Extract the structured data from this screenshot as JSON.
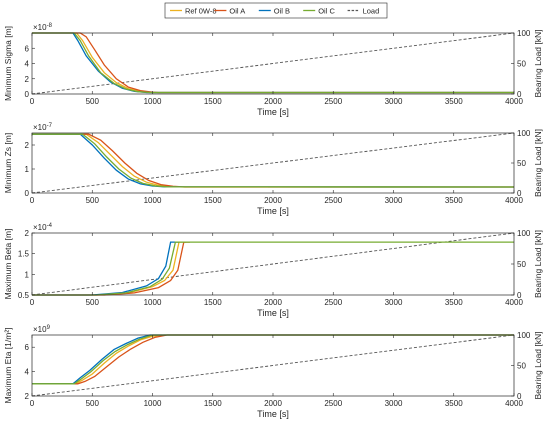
{
  "legend": {
    "placement": "top-center",
    "entries": [
      {
        "label": "Ref 0W-8",
        "color": "#EDB120",
        "dash": false
      },
      {
        "label": "Oil A",
        "color": "#D95319",
        "dash": false
      },
      {
        "label": "Oil B",
        "color": "#0072BD",
        "dash": false
      },
      {
        "label": "Oil C",
        "color": "#77AC30",
        "dash": false
      },
      {
        "label": "Load",
        "color": "#555555",
        "dash": true
      }
    ]
  },
  "chart_data": [
    {
      "type": "line",
      "ylabel": "Minimum Sigma [m]",
      "y2label": "Bearing Load [kN]",
      "xlabel": "Time [s]",
      "exponent": "×10",
      "exponent_power": "-8",
      "xlim": [
        0,
        4000
      ],
      "ylim": [
        0,
        8
      ],
      "y2lim": [
        0,
        100
      ],
      "xticks": [
        "0",
        "500",
        "1000",
        "1500",
        "2000",
        "2500",
        "3000",
        "3500",
        "4000"
      ],
      "yticks": [
        {
          "v": 0,
          "t": "0"
        },
        {
          "v": 2,
          "t": "2"
        },
        {
          "v": 4,
          "t": "4"
        },
        {
          "v": 6,
          "t": "6"
        }
      ],
      "y2ticks": [
        {
          "v": 0,
          "t": "0"
        },
        {
          "v": 50,
          "t": "50"
        },
        {
          "v": 100,
          "t": "100"
        }
      ],
      "series": [
        {
          "name": "Ref 0W-8",
          "color": "#EDB120",
          "points": [
            [
              0,
              8
            ],
            [
              370,
              8
            ],
            [
              420,
              7
            ],
            [
              500,
              4.8
            ],
            [
              600,
              2.8
            ],
            [
              700,
              1.5
            ],
            [
              800,
              0.7
            ],
            [
              900,
              0.35
            ],
            [
              1000,
              0.2
            ],
            [
              4000,
              0.2
            ]
          ]
        },
        {
          "name": "Oil A",
          "color": "#D95319",
          "points": [
            [
              0,
              8
            ],
            [
              400,
              8
            ],
            [
              450,
              7.5
            ],
            [
              520,
              5.8
            ],
            [
              600,
              3.8
            ],
            [
              700,
              2
            ],
            [
              800,
              0.9
            ],
            [
              900,
              0.45
            ],
            [
              1000,
              0.25
            ],
            [
              1050,
              0.2
            ],
            [
              4000,
              0.2
            ]
          ]
        },
        {
          "name": "Oil B",
          "color": "#0072BD",
          "points": [
            [
              0,
              8
            ],
            [
              340,
              8
            ],
            [
              380,
              7
            ],
            [
              450,
              5
            ],
            [
              550,
              3
            ],
            [
              650,
              1.6
            ],
            [
              750,
              0.75
            ],
            [
              850,
              0.35
            ],
            [
              950,
              0.2
            ],
            [
              4000,
              0.2
            ]
          ]
        },
        {
          "name": "Oil C",
          "color": "#77AC30",
          "points": [
            [
              0,
              8
            ],
            [
              350,
              8
            ],
            [
              400,
              7
            ],
            [
              470,
              5
            ],
            [
              570,
              2.8
            ],
            [
              680,
              1.4
            ],
            [
              780,
              0.65
            ],
            [
              880,
              0.3
            ],
            [
              980,
              0.2
            ],
            [
              4000,
              0.2
            ]
          ]
        }
      ],
      "load": [
        [
          0,
          0
        ],
        [
          4000,
          100
        ]
      ]
    },
    {
      "type": "line",
      "ylabel": "Minimum Zs [m]",
      "y2label": "Bearing Load [kN]",
      "xlabel": "Time [s]",
      "exponent": "×10",
      "exponent_power": "-7",
      "xlim": [
        0,
        4000
      ],
      "ylim": [
        0,
        2.5
      ],
      "y2lim": [
        0,
        100
      ],
      "xticks": [
        "0",
        "500",
        "1000",
        "1500",
        "2000",
        "2500",
        "3000",
        "3500",
        "4000"
      ],
      "yticks": [
        {
          "v": 0,
          "t": "0"
        },
        {
          "v": 1,
          "t": "1"
        },
        {
          "v": 2,
          "t": "2"
        }
      ],
      "y2ticks": [
        {
          "v": 0,
          "t": "0"
        },
        {
          "v": 50,
          "t": "50"
        },
        {
          "v": 100,
          "t": "100"
        }
      ],
      "series": [
        {
          "name": "Ref 0W-8",
          "color": "#EDB120",
          "points": [
            [
              0,
              2.45
            ],
            [
              450,
              2.45
            ],
            [
              550,
              2.1
            ],
            [
              650,
              1.6
            ],
            [
              750,
              1.1
            ],
            [
              850,
              0.7
            ],
            [
              950,
              0.45
            ],
            [
              1050,
              0.32
            ],
            [
              1150,
              0.27
            ],
            [
              1250,
              0.25
            ],
            [
              4000,
              0.25
            ]
          ]
        },
        {
          "name": "Oil A",
          "color": "#D95319",
          "points": [
            [
              0,
              2.45
            ],
            [
              470,
              2.45
            ],
            [
              570,
              2.2
            ],
            [
              670,
              1.75
            ],
            [
              770,
              1.25
            ],
            [
              870,
              0.82
            ],
            [
              970,
              0.52
            ],
            [
              1070,
              0.35
            ],
            [
              1170,
              0.28
            ],
            [
              1270,
              0.25
            ],
            [
              4000,
              0.25
            ]
          ]
        },
        {
          "name": "Oil B",
          "color": "#0072BD",
          "points": [
            [
              0,
              2.45
            ],
            [
              400,
              2.45
            ],
            [
              500,
              2
            ],
            [
              600,
              1.45
            ],
            [
              700,
              0.95
            ],
            [
              800,
              0.58
            ],
            [
              900,
              0.38
            ],
            [
              1000,
              0.29
            ],
            [
              1100,
              0.26
            ],
            [
              4000,
              0.25
            ]
          ]
        },
        {
          "name": "Oil C",
          "color": "#77AC30",
          "points": [
            [
              0,
              2.45
            ],
            [
              420,
              2.45
            ],
            [
              520,
              2.05
            ],
            [
              620,
              1.5
            ],
            [
              720,
              1
            ],
            [
              820,
              0.62
            ],
            [
              920,
              0.4
            ],
            [
              1020,
              0.3
            ],
            [
              1120,
              0.26
            ],
            [
              4000,
              0.25
            ]
          ]
        }
      ],
      "load": [
        [
          0,
          0
        ],
        [
          4000,
          100
        ]
      ]
    },
    {
      "type": "line",
      "ylabel": "Maximum Beta [m]",
      "y2label": "Bearing Load [kN]",
      "xlabel": "Time [s]",
      "exponent": "×10",
      "exponent_power": "-4",
      "xlim": [
        0,
        4000
      ],
      "ylim": [
        0.5,
        2
      ],
      "y2lim": [
        0,
        100
      ],
      "xticks": [
        "0",
        "500",
        "1000",
        "1500",
        "2000",
        "2500",
        "3000",
        "3500",
        "4000"
      ],
      "yticks": [
        {
          "v": 0.5,
          "t": "0.5"
        },
        {
          "v": 1,
          "t": "1"
        },
        {
          "v": 1.5,
          "t": "1.5"
        },
        {
          "v": 2,
          "t": "2"
        }
      ],
      "y2ticks": [
        {
          "v": 0,
          "t": "0"
        },
        {
          "v": 50,
          "t": "50"
        },
        {
          "v": 100,
          "t": "100"
        }
      ],
      "series": [
        {
          "name": "Ref 0W-8",
          "color": "#EDB120",
          "points": [
            [
              0,
              0.5
            ],
            [
              550,
              0.5
            ],
            [
              800,
              0.55
            ],
            [
              1000,
              0.7
            ],
            [
              1100,
              0.85
            ],
            [
              1170,
              1.1
            ],
            [
              1220,
              1.78
            ],
            [
              1280,
              1.78
            ]
          ]
        },
        {
          "name": "Oil A",
          "color": "#D95319",
          "points": [
            [
              0,
              0.5
            ],
            [
              600,
              0.5
            ],
            [
              850,
              0.55
            ],
            [
              1050,
              0.68
            ],
            [
              1150,
              0.85
            ],
            [
              1210,
              1.1
            ],
            [
              1260,
              1.78
            ],
            [
              1310,
              1.78
            ]
          ]
        },
        {
          "name": "Oil B",
          "color": "#0072BD",
          "points": [
            [
              0,
              0.5
            ],
            [
              500,
              0.5
            ],
            [
              750,
              0.56
            ],
            [
              950,
              0.72
            ],
            [
              1050,
              0.9
            ],
            [
              1110,
              1.2
            ],
            [
              1150,
              1.78
            ],
            [
              1220,
              1.78
            ]
          ]
        },
        {
          "name": "Oil C",
          "color": "#77AC30",
          "points": [
            [
              0,
              0.5
            ],
            [
              530,
              0.5
            ],
            [
              780,
              0.55
            ],
            [
              980,
              0.7
            ],
            [
              1080,
              0.88
            ],
            [
              1140,
              1.15
            ],
            [
              1190,
              1.78
            ],
            [
              4000,
              1.78
            ]
          ]
        }
      ],
      "load": [
        [
          0,
          0
        ],
        [
          4000,
          100
        ]
      ]
    },
    {
      "type": "line",
      "ylabel": "Maximum Eta [1/m²]",
      "y2label": "Bearing Load [kN]",
      "xlabel": "Time [s]",
      "exponent": "×10",
      "exponent_power": "9",
      "xlim": [
        0,
        4000
      ],
      "ylim": [
        2,
        7
      ],
      "y2lim": [
        0,
        100
      ],
      "xticks": [
        "0",
        "500",
        "1000",
        "1500",
        "2000",
        "2500",
        "3000",
        "3500",
        "4000"
      ],
      "yticks": [
        {
          "v": 2,
          "t": "2"
        },
        {
          "v": 4,
          "t": "4"
        },
        {
          "v": 6,
          "t": "6"
        }
      ],
      "y2ticks": [
        {
          "v": 0,
          "t": "0"
        },
        {
          "v": 50,
          "t": "50"
        },
        {
          "v": 100,
          "t": "100"
        }
      ],
      "series": [
        {
          "name": "Ref 0W-8",
          "color": "#EDB120",
          "points": [
            [
              0,
              3
            ],
            [
              360,
              3
            ],
            [
              420,
              3.3
            ],
            [
              500,
              3.8
            ],
            [
              600,
              4.7
            ],
            [
              700,
              5.5
            ],
            [
              800,
              6.1
            ],
            [
              900,
              6.6
            ],
            [
              1000,
              6.9
            ],
            [
              1100,
              7
            ],
            [
              4000,
              7
            ]
          ]
        },
        {
          "name": "Oil A",
          "color": "#D95319",
          "points": [
            [
              0,
              3
            ],
            [
              380,
              3
            ],
            [
              440,
              3.2
            ],
            [
              520,
              3.6
            ],
            [
              620,
              4.4
            ],
            [
              720,
              5.2
            ],
            [
              820,
              5.85
            ],
            [
              920,
              6.4
            ],
            [
              1020,
              6.8
            ],
            [
              1120,
              7
            ],
            [
              4000,
              7
            ]
          ]
        },
        {
          "name": "Oil B",
          "color": "#0072BD",
          "points": [
            [
              0,
              3
            ],
            [
              340,
              3
            ],
            [
              400,
              3.5
            ],
            [
              480,
              4.1
            ],
            [
              580,
              5
            ],
            [
              680,
              5.8
            ],
            [
              780,
              6.3
            ],
            [
              880,
              6.75
            ],
            [
              980,
              7
            ],
            [
              4000,
              7
            ]
          ]
        },
        {
          "name": "Oil C",
          "color": "#77AC30",
          "points": [
            [
              0,
              3
            ],
            [
              350,
              3
            ],
            [
              410,
              3.4
            ],
            [
              490,
              4
            ],
            [
              590,
              4.9
            ],
            [
              690,
              5.65
            ],
            [
              790,
              6.2
            ],
            [
              890,
              6.65
            ],
            [
              1000,
              7
            ],
            [
              4000,
              7
            ]
          ]
        }
      ],
      "load": [
        [
          0,
          0
        ],
        [
          4000,
          100
        ]
      ]
    }
  ]
}
